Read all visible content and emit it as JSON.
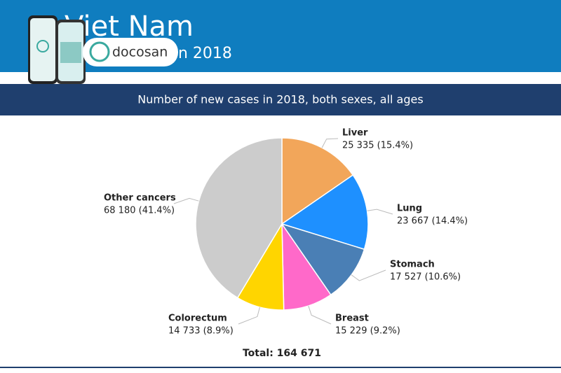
{
  "header": {
    "title": "Viet Nam",
    "subtitle": "n 2018",
    "brand": "docosan"
  },
  "chart_data": {
    "type": "pie",
    "title": "Number of new cases in 2018, both sexes, all ages",
    "categories": [
      "Liver",
      "Lung",
      "Stomach",
      "Breast",
      "Colorectum",
      "Other cancers"
    ],
    "values": [
      25335,
      23667,
      17527,
      15229,
      14733,
      68180
    ],
    "value_labels": [
      "25 335 (15.4%)",
      "23 667 (14.4%)",
      "17 527 (10.6%)",
      "15 229 (9.2%)",
      "14 733 (8.9%)",
      "68 180 (41.4%)"
    ],
    "colors": [
      "#f2a65a",
      "#1e90ff",
      "#4a7fb5",
      "#ff69c9",
      "#ffd500",
      "#cccccc"
    ],
    "total_label": "Total: 164 671"
  }
}
